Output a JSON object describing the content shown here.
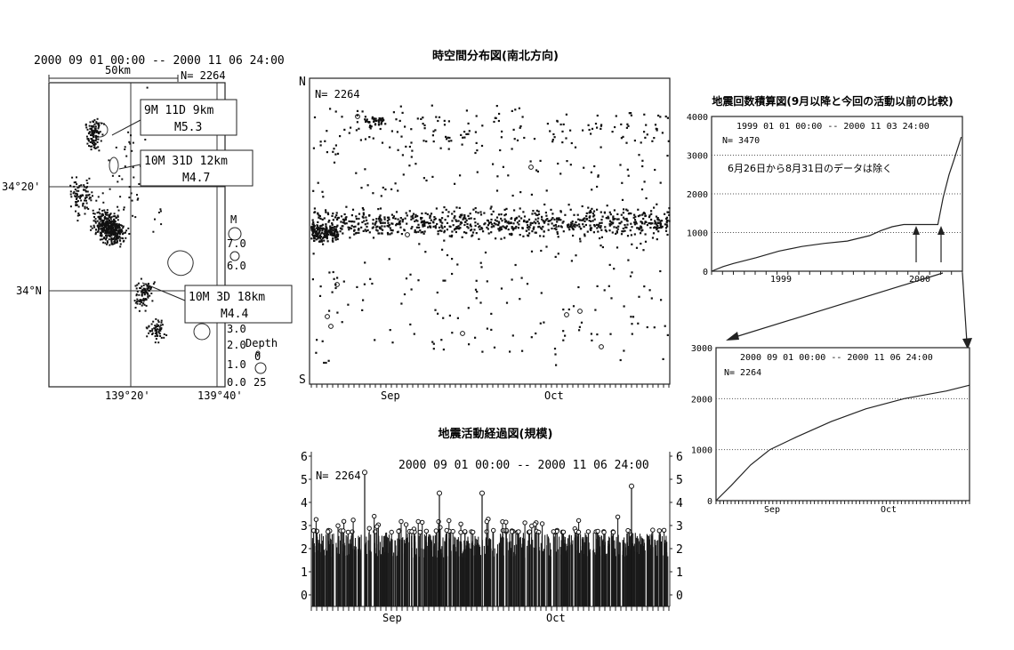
{
  "map": {
    "period": "2000 09 01 00:00 -- 2000 11 06 24:00",
    "scale": "50km",
    "count": "N= 2264",
    "lat_labels": [
      "34°20'",
      "34°N"
    ],
    "lon_labels": [
      "139°20'",
      "139°40'"
    ],
    "callouts": [
      {
        "line1": "9M 11D  9km",
        "line2": "M5.3"
      },
      {
        "line1": "10M 31D  12km",
        "line2": "M4.7"
      },
      {
        "line1": "10M 3D  18km",
        "line2": "M4.4"
      }
    ],
    "legend_m_title": "M",
    "legend_m_values": [
      "7.0",
      "6.0",
      "3.0",
      "2.0",
      "1.0",
      "0.0"
    ],
    "legend_depth_title": "Depth",
    "legend_depth_values": [
      "0",
      "25"
    ]
  },
  "chart_data": [
    {
      "type": "scatter",
      "id": "spatiotemporal",
      "title": "時空間分布図(南北方向)",
      "count_label": "N= 2264",
      "ylabel_top": "N",
      "ylabel_bottom": "S",
      "x_ticks": [
        "Sep",
        "Oct"
      ],
      "xlim": [
        "2000-09-01",
        "2000-11-06"
      ],
      "note": "dense band of events throughout period, main cluster near middle latitude"
    },
    {
      "type": "bar",
      "id": "magnitude_time",
      "title": "地震活動経過図(規模)",
      "period": "2000 09 01 00:00 -- 2000 11 06 24:00",
      "count_label": "N= 2264",
      "x_ticks": [
        "Sep",
        "Oct"
      ],
      "y_ticks": [
        "0",
        "1",
        "2",
        "3",
        "4",
        "5",
        "6"
      ],
      "ylim": [
        0,
        6
      ],
      "major_events": [
        {
          "date": "2000-09-11",
          "magnitude": 5.3
        },
        {
          "date": "2000-09-25",
          "magnitude": 4.4
        },
        {
          "date": "2000-10-03",
          "magnitude": 4.4
        },
        {
          "date": "2000-10-31",
          "magnitude": 4.7
        }
      ]
    },
    {
      "type": "line",
      "id": "cumulative_long",
      "title": "地震回数積算図(9月以降と今回の活動以前の比較)",
      "period": "1999 01 01 00:00 -- 2000 11 03 24:00",
      "count_label": "N= 3470",
      "annotation": "6月26日から8月31日のデータは除く",
      "x_ticks": [
        "1999",
        "2000"
      ],
      "y_ticks": [
        "0",
        "1000",
        "2000",
        "3000",
        "4000"
      ],
      "ylim": [
        0,
        4000
      ],
      "points": [
        [
          "1999-01",
          0
        ],
        [
          "1999-02",
          120
        ],
        [
          "1999-03",
          200
        ],
        [
          "1999-05",
          350
        ],
        [
          "1999-07",
          520
        ],
        [
          "1999-09",
          640
        ],
        [
          "1999-11",
          720
        ],
        [
          "2000-01",
          780
        ],
        [
          "2000-03",
          920
        ],
        [
          "2000-04",
          1050
        ],
        [
          "2000-05",
          1150
        ],
        [
          "2000-06",
          1206
        ],
        [
          "2000-09-01",
          1206
        ],
        [
          "2000-09-15",
          1900
        ],
        [
          "2000-10-01",
          2500
        ],
        [
          "2000-10-15",
          2900
        ],
        [
          "2000-11-03",
          3470
        ]
      ]
    },
    {
      "type": "line",
      "id": "cumulative_recent",
      "period": "2000 09 01 00:00 -- 2000 11 06 24:00",
      "count_label": "N= 2264",
      "x_ticks": [
        "Sep",
        "Oct"
      ],
      "y_ticks": [
        "0",
        "1000",
        "2000",
        "3000"
      ],
      "ylim": [
        0,
        3000
      ],
      "points": [
        [
          "2000-09-01",
          0
        ],
        [
          "2000-09-05",
          300
        ],
        [
          "2000-09-10",
          700
        ],
        [
          "2000-09-15",
          1000
        ],
        [
          "2000-09-22",
          1250
        ],
        [
          "2000-10-01",
          1550
        ],
        [
          "2000-10-10",
          1800
        ],
        [
          "2000-10-20",
          2000
        ],
        [
          "2000-10-31",
          2150
        ],
        [
          "2000-11-06",
          2264
        ]
      ]
    }
  ]
}
